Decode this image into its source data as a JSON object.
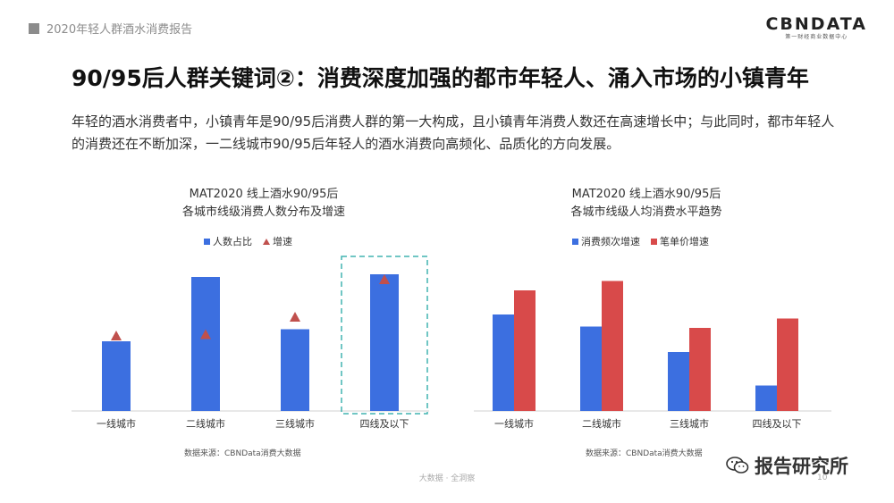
{
  "header": {
    "title": "2020年轻人群酒水消费报告"
  },
  "logo": {
    "main": "CBNDATA",
    "sub": "第一财经商业数据中心"
  },
  "headline": "90/95后人群关键词②：消费深度加强的都市年轻人、涌入市场的小镇青年",
  "intro": "年轻的酒水消费者中，小镇青年是90/95后消费人群的第一大构成，且小镇青年消费人数还在高速增长中；与此同时，都市年轻人的消费还在不断加深，一二线城市90/95后年轻人的酒水消费向高频化、品质化的方向发展。",
  "charts": [
    {
      "title_line1": "MAT2020 线上酒水90/95后",
      "title_line2": "各城市线级消费人数分布及增速",
      "legend": [
        {
          "label": "人数占比"
        },
        {
          "label": "增速"
        }
      ],
      "source": "数据来源：CBNData消费大数据"
    },
    {
      "title_line1": "MAT2020 线上酒水90/95后",
      "title_line2": "各城市线级人均消费水平趋势",
      "legend": [
        {
          "label": "消费频次增速"
        },
        {
          "label": "笔单价增速"
        }
      ],
      "source": "数据来源：CBNData消费大数据"
    }
  ],
  "chart_data": [
    {
      "type": "bar",
      "title": "MAT2020 线上酒水90/95后 各城市线级消费人数分布及增速",
      "categories": [
        "一线城市",
        "二线城市",
        "三线城市",
        "四线及以下"
      ],
      "series": [
        {
          "name": "人数占比",
          "kind": "bar",
          "values": [
            0.52,
            1.0,
            0.61,
            1.02
          ]
        },
        {
          "name": "增速",
          "kind": "marker",
          "values": [
            0.56,
            0.57,
            0.7,
            0.98
          ]
        }
      ],
      "highlight_category": "四线及以下",
      "axis_shown": false,
      "grid": false,
      "legend_position": "top"
    },
    {
      "type": "bar",
      "title": "MAT2020 线上酒水90/95后 各城市线级人均消费水平趋势",
      "categories": [
        "一线城市",
        "二线城市",
        "三线城市",
        "四线及以下"
      ],
      "series": [
        {
          "name": "消费频次增速",
          "values": [
            0.72,
            0.63,
            0.44,
            0.19
          ]
        },
        {
          "name": "笔单价增速",
          "values": [
            0.9,
            0.97,
            0.62,
            0.69
          ]
        }
      ],
      "axis_shown": false,
      "grid": false,
      "legend_position": "top"
    }
  ],
  "colors": {
    "blue": "#3c6fe0",
    "red": "#d84a4a",
    "marker": "#c0504d",
    "highlight": "#40b4b0"
  },
  "footer": {
    "text": "大数据 · 全洞察",
    "page": "10"
  },
  "wechat": {
    "label": "报告研究所"
  }
}
